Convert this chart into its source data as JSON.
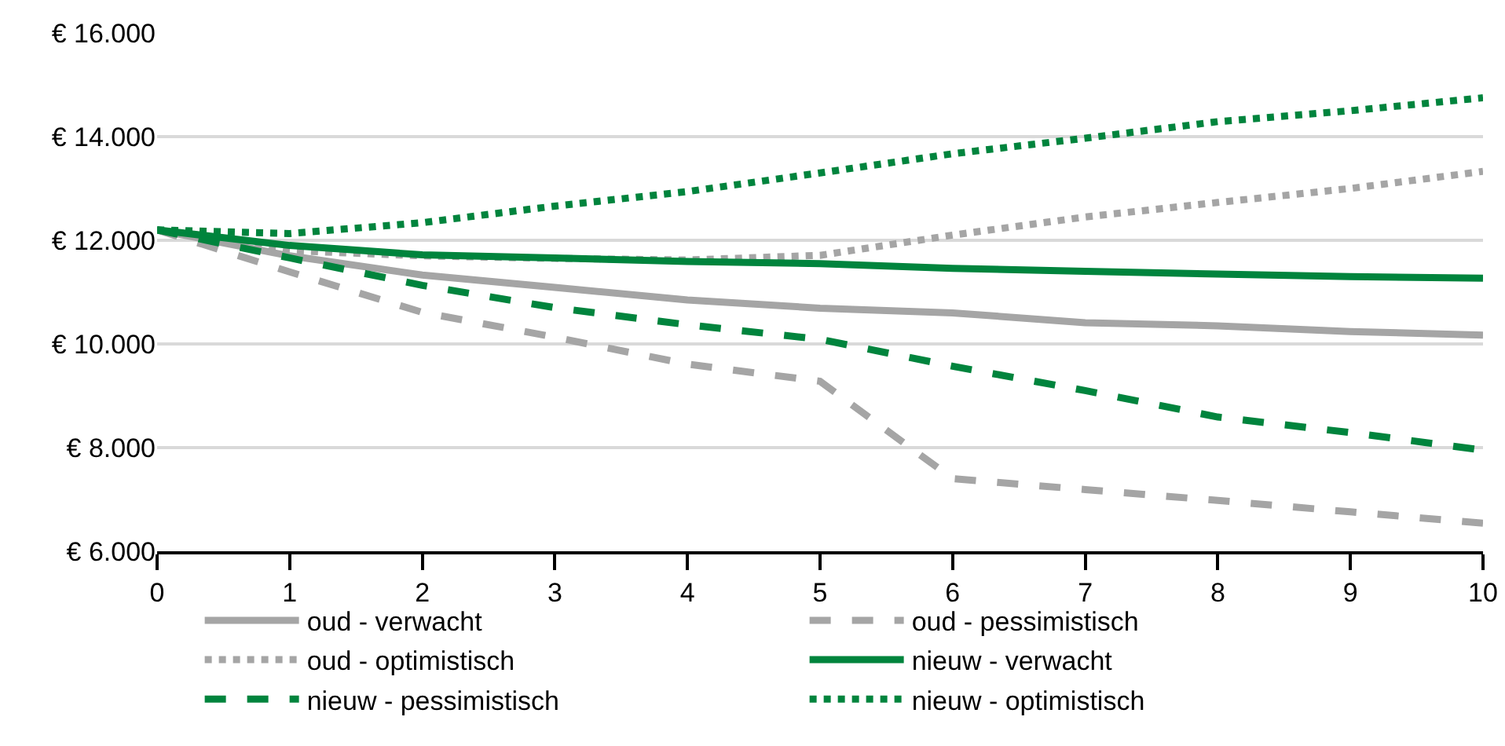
{
  "chart_data": {
    "type": "line",
    "x": [
      0,
      1,
      2,
      3,
      4,
      5,
      6,
      7,
      8,
      9,
      10
    ],
    "xlim": [
      0,
      10
    ],
    "xticks": [
      0,
      1,
      2,
      3,
      4,
      5,
      6,
      7,
      8,
      9,
      10
    ],
    "ylim": [
      6000,
      16000
    ],
    "yticks": [
      {
        "value": 6000,
        "label": "€ 6.000"
      },
      {
        "value": 8000,
        "label": "€ 8.000"
      },
      {
        "value": 10000,
        "label": "€ 10.000"
      },
      {
        "value": 12000,
        "label": "€ 12.000"
      },
      {
        "value": 14000,
        "label": "€ 14.000"
      },
      {
        "value": 16000,
        "label": "€ 16.000"
      }
    ],
    "grid": "y",
    "legend": "bottom",
    "marker": "none",
    "series": [
      {
        "name": "oud - verwacht",
        "color": "#a5a5a5",
        "line_style": "solid",
        "values": [
          12200,
          11700,
          11330,
          11090,
          10850,
          10690,
          10600,
          10410,
          10350,
          10240,
          10170
        ]
      },
      {
        "name": "oud - pessimistisch",
        "color": "#a5a5a5",
        "line_style": "dashed",
        "values": [
          12200,
          11390,
          10610,
          10130,
          9610,
          9280,
          7400,
          7190,
          6980,
          6760,
          6540
        ]
      },
      {
        "name": "oud - optimistisch",
        "color": "#a5a5a5",
        "line_style": "dotted",
        "values": [
          12200,
          11800,
          11700,
          11650,
          11620,
          11710,
          12100,
          12450,
          12730,
          13000,
          13330
        ]
      },
      {
        "name": "nieuw - verwacht",
        "color": "#00843d",
        "line_style": "solid",
        "values": [
          12200,
          11900,
          11720,
          11660,
          11590,
          11550,
          11460,
          11400,
          11350,
          11300,
          11270
        ]
      },
      {
        "name": "nieuw - pessimistisch",
        "color": "#00843d",
        "line_style": "dashed",
        "values": [
          12200,
          11660,
          11130,
          10700,
          10370,
          10090,
          9570,
          9100,
          8590,
          8290,
          7950
        ]
      },
      {
        "name": "nieuw - optimistisch",
        "color": "#00843d",
        "line_style": "dotted",
        "values": [
          12200,
          12130,
          12340,
          12660,
          12940,
          13300,
          13670,
          13970,
          14290,
          14500,
          14750
        ]
      }
    ]
  }
}
